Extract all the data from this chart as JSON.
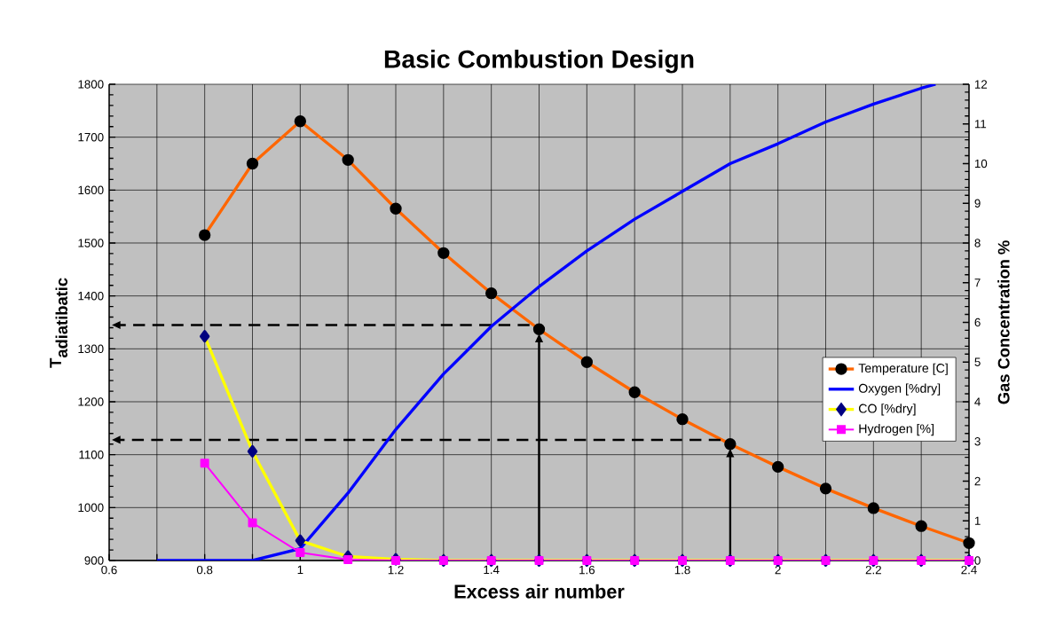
{
  "chart_data": {
    "type": "line",
    "title": "Basic Combustion Design",
    "xlabel": "Excess air number",
    "ylabel": "\\textbf{T}_{\\textbf{adiatibatic}}",
    "y2label": "Gas Concentration %",
    "xlim": [
      0.6,
      2.4
    ],
    "xticks": [
      0.6,
      {
        "value": 0.7,
        "label": null
      },
      0.8,
      {
        "value": 0.9,
        "label": null
      },
      1,
      {
        "value": 1.1,
        "label": null
      },
      1.2,
      {
        "value": 1.3,
        "label": null
      },
      1.4,
      {
        "value": 1.5,
        "label": null
      },
      1.6,
      {
        "value": 1.7,
        "label": null
      },
      1.8,
      {
        "value": 1.9,
        "label": null
      },
      2,
      {
        "value": 2.1,
        "label": null
      },
      2.2,
      {
        "value": 2.3,
        "label": null
      },
      2.4
    ],
    "ylim": [
      900,
      1800
    ],
    "yticks": [
      900,
      1000,
      1100,
      1200,
      1300,
      1400,
      1500,
      1600,
      1700,
      1800
    ],
    "y2lim": [
      0,
      12
    ],
    "y2ticks": [
      0,
      1,
      2,
      3,
      4,
      5,
      6,
      7,
      8,
      9,
      10,
      11,
      12
    ],
    "grid": true,
    "legend": "right",
    "series": [
      {
        "name": "Temperature [C]",
        "color": "#ff6600",
        "marker": "circle",
        "x": [
          0.8,
          0.9,
          1.0,
          1.1,
          1.2,
          1.3,
          1.4,
          1.5,
          1.6,
          1.7,
          1.8,
          1.9,
          2.0,
          2.1,
          2.2,
          2.3,
          2.4
        ],
        "values": [
          1515,
          1650,
          1730,
          1657,
          1565,
          1481,
          1405,
          1337,
          1275,
          1218,
          1167,
          1120,
          1077,
          1036,
          999,
          965,
          933
        ]
      },
      {
        "name": "Oxygen [%dry]",
        "color": "#0000ff",
        "marker": "none",
        "axis": "y2",
        "x": [
          0.7,
          0.8,
          0.9,
          1.0,
          1.1,
          1.2,
          1.3,
          1.4,
          1.5,
          1.6,
          1.7,
          1.8,
          1.9,
          2.0,
          2.1,
          2.2,
          2.3,
          2.33
        ],
        "values": [
          0,
          0,
          0,
          0.3,
          1.7,
          3.3,
          4.7,
          5.9,
          6.9,
          7.8,
          8.6,
          9.3,
          10.0,
          10.5,
          11.05,
          11.5,
          11.9,
          12
        ]
      },
      {
        "name": "CO [%dry]",
        "color": "#ffff00",
        "marker": "diamond",
        "axis": "y2",
        "x": [
          0.8,
          0.9,
          1.0,
          1.1,
          1.2,
          1.3,
          1.4,
          1.5,
          1.6,
          1.7,
          1.8,
          1.9,
          2.0,
          2.1,
          2.2,
          2.3,
          2.4
        ],
        "values": [
          5.65,
          2.75,
          0.5,
          0.1,
          0.03,
          0,
          0,
          0,
          0,
          0,
          0,
          0,
          0,
          0,
          0,
          0,
          0
        ]
      },
      {
        "name": "Hydrogen [%]",
        "color": "#ff00ff",
        "marker": "square",
        "axis": "y2",
        "x": [
          0.8,
          0.9,
          1.0,
          1.1,
          1.2,
          1.3,
          1.4,
          1.5,
          1.6,
          1.7,
          1.8,
          1.9,
          2.0,
          2.1,
          2.2,
          2.3,
          2.4
        ],
        "values": [
          2.45,
          0.95,
          0.2,
          0.02,
          0,
          0,
          0,
          0,
          0,
          0,
          0,
          0,
          0,
          0,
          0,
          0,
          0
        ]
      }
    ]
  }
}
